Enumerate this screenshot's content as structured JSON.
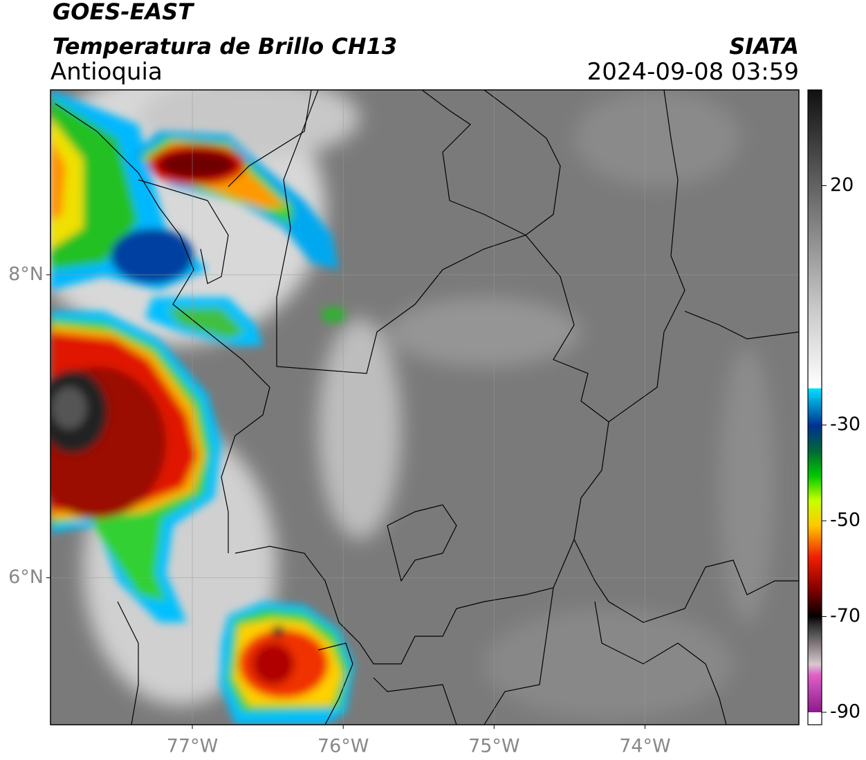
{
  "header": {
    "title": "GOES-EAST",
    "subtitle": "Temperatura de Brillo CH13",
    "source": "SIATA",
    "region": "Antioquia",
    "timestamp": "2024-09-08 03:59"
  },
  "map": {
    "xlim": [
      -77.94,
      -72.98
    ],
    "ylim": [
      5.03,
      9.22
    ],
    "xticks": [
      {
        "value": -77,
        "label": "77°W"
      },
      {
        "value": -76,
        "label": "76°W"
      },
      {
        "value": -75,
        "label": "75°W"
      },
      {
        "value": -74,
        "label": "74°W"
      }
    ],
    "yticks": [
      {
        "value": 6,
        "label": "6°N"
      },
      {
        "value": 8,
        "label": "8°N"
      }
    ],
    "grid": true
  },
  "colorbar": {
    "lim": [
      -90,
      40
    ],
    "ticks": [
      20,
      -30,
      -50,
      -70,
      -90
    ]
  }
}
